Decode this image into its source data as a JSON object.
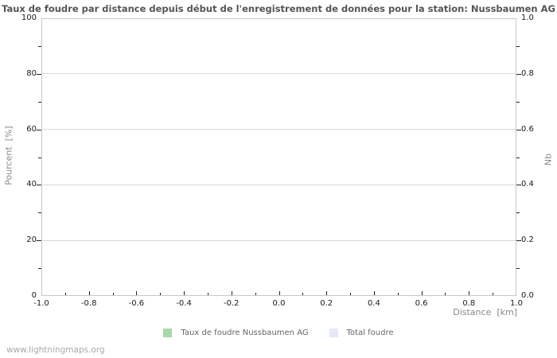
{
  "page": {
    "footer_link": "www.lightningmaps.org"
  },
  "chart_data": {
    "type": "bar",
    "title": "Taux de foudre par distance depuis début de l'enregistrement de données pour la station: Nussbaumen AG",
    "x_axis": {
      "label": "Distance  [km]",
      "range": [
        -1.0,
        1.0
      ],
      "tick_labels": [
        "-1.0",
        "-0.8",
        "-0.6",
        "-0.4",
        "-0.2",
        "0.0",
        "0.2",
        "0.4",
        "0.6",
        "0.8",
        "1.0"
      ],
      "minor_ticks": [
        -0.9,
        -0.7,
        -0.5,
        -0.3,
        -0.1,
        0.1,
        0.3,
        0.5,
        0.7,
        0.9
      ]
    },
    "y_axis_left": {
      "label": "Pourcent  [%]",
      "range": [
        0,
        100
      ],
      "tick_labels": [
        "0",
        "20",
        "40",
        "60",
        "80",
        "100"
      ],
      "minor_ticks": [
        10,
        30,
        50,
        70,
        90
      ]
    },
    "y_axis_right": {
      "label": "Nb",
      "range": [
        0.0,
        1.0
      ],
      "tick_labels": [
        "0.0",
        "0.2",
        "0.4",
        "0.6",
        "0.8",
        "1.0"
      ],
      "minor_ticks": [
        0.1,
        0.3,
        0.5,
        0.7,
        0.9
      ]
    },
    "grid": "horizontal-major-only",
    "legend_position": "bottom-center",
    "series": [
      {
        "name": "Taux de foudre Nussbaumen AG",
        "color": "#a8d8a8",
        "axis": "left",
        "x": [],
        "values": []
      },
      {
        "name": "Total foudre",
        "color": "#e6e6fa",
        "axis": "right",
        "x": [],
        "values": []
      }
    ]
  },
  "colors": {
    "background": "#ffffff",
    "plot_border": "#c8c8c8",
    "gridline": "#d9d9d9",
    "tick": "#222222",
    "tick_label": "#1a1a1a",
    "axis_label": "#888888",
    "title": "#555555",
    "legend_label": "#666666",
    "footer": "#a9a9a9"
  }
}
